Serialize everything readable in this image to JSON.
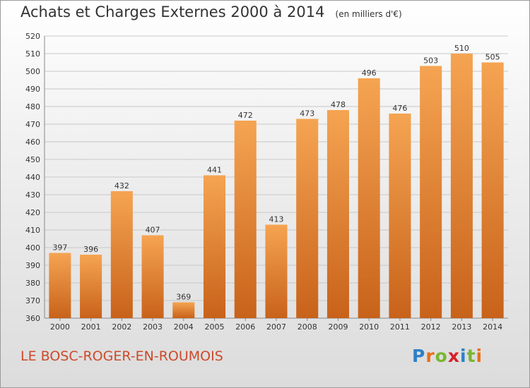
{
  "header": {
    "title": "Achats et Charges Externes 2000 à 2014",
    "unit": "(en milliers d'€)"
  },
  "footer": {
    "commune": "LE BOSC-ROGER-EN-ROUMOIS",
    "logo_letters": [
      "P",
      "r",
      "o",
      "x",
      "i",
      "t",
      "i"
    ],
    "logo_colors": [
      "#2d7fc9",
      "#e8701a",
      "#7ab630",
      "#d6202a",
      "#2d7fc9",
      "#7ab630",
      "#e8701a"
    ]
  },
  "colors": {
    "bar_light": "#f5a452",
    "bar_dark": "#c8621a",
    "grid": "#c8c8c8",
    "text": "#333333"
  },
  "chart_data": {
    "type": "bar",
    "categories": [
      "2000",
      "2001",
      "2002",
      "2003",
      "2004",
      "2005",
      "2006",
      "2007",
      "2008",
      "2009",
      "2010",
      "2011",
      "2012",
      "2013",
      "2014"
    ],
    "values": [
      397,
      396,
      432,
      407,
      369,
      441,
      472,
      413,
      473,
      478,
      496,
      476,
      503,
      510,
      505
    ],
    "yticks": [
      360,
      370,
      380,
      390,
      400,
      410,
      420,
      430,
      440,
      450,
      460,
      470,
      480,
      490,
      500,
      510,
      520
    ],
    "ylim": [
      360,
      520
    ],
    "grid": true,
    "xlabel": "",
    "ylabel": ""
  }
}
